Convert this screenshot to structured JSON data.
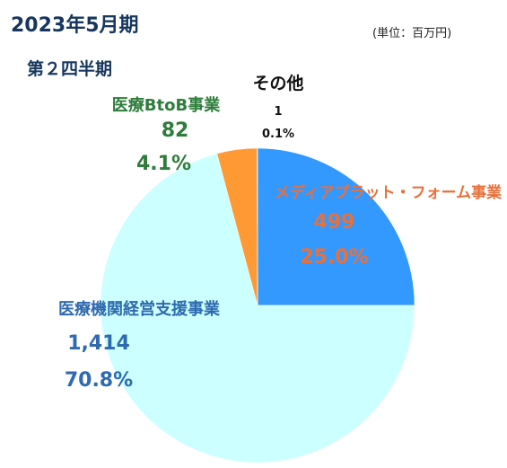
{
  "header": {
    "title": "2023年5月期",
    "subtitle": "第２四半期",
    "unit": "(単位：百万円)"
  },
  "chart_data": {
    "type": "pie",
    "title": "",
    "start": "12 o'clock, clockwise",
    "slices": [
      {
        "name": "メディアプラットフォーム事業",
        "value": 499,
        "value_label": "499",
        "percent_label": "25.0%",
        "color": "#3399ff",
        "label_color": "#e8703a"
      },
      {
        "name": "医療機関経営支援事業",
        "value": 1414,
        "value_label": "1,414",
        "percent_label": "70.8%",
        "color": "#ccffff",
        "label_color": "#2e6ab0"
      },
      {
        "name": "医療BtoB事業",
        "value": 82,
        "value_label": "82",
        "percent_label": "4.1%",
        "color": "#ff9933",
        "label_color": "#2e7d3b"
      },
      {
        "name": "その他",
        "value": 1,
        "value_label": "1",
        "percent_label": "0.1%",
        "color": "#4a7fc1",
        "label_color": "#111111"
      }
    ],
    "label_texts": {
      "media": "メディアプラット・フォーム事業",
      "clinic": "医療機関経営支援事業",
      "btob": "医療BtoB事業",
      "other": "その他"
    }
  }
}
